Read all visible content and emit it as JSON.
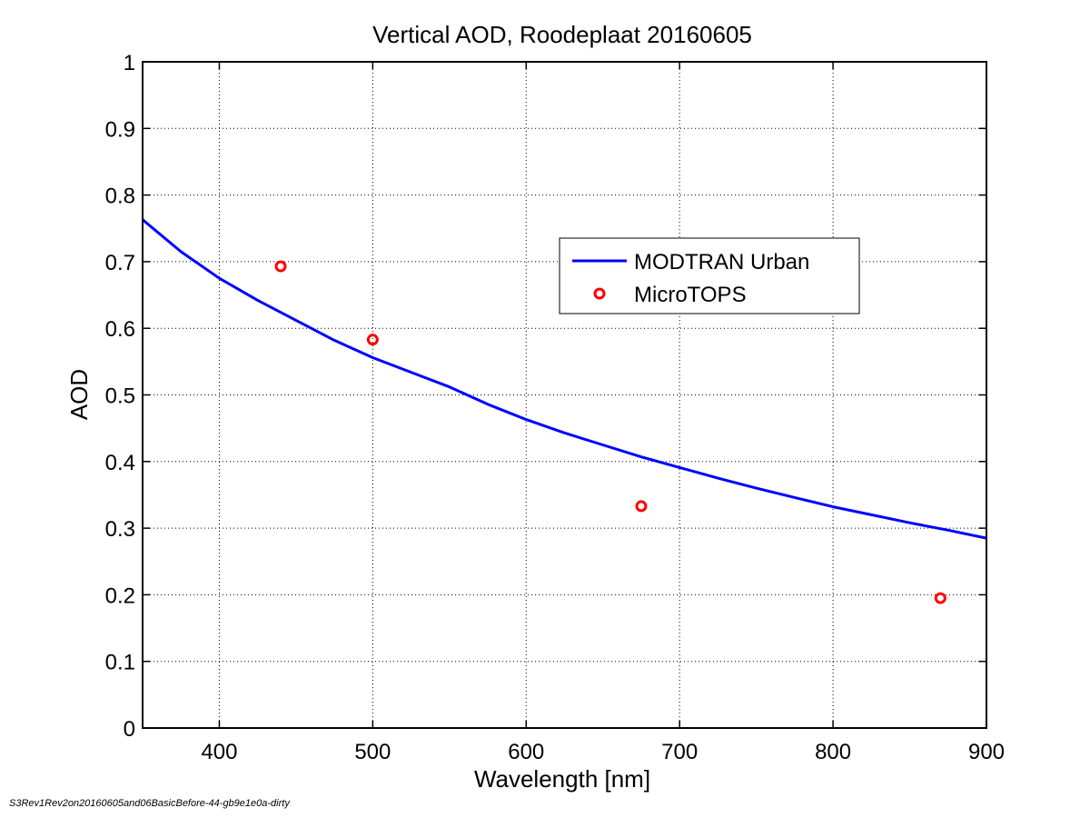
{
  "chart_data": {
    "type": "line",
    "title": "Vertical AOD, Roodeplaat 20160605",
    "xlabel": "Wavelength [nm]",
    "ylabel": "AOD",
    "xlim": [
      350,
      900
    ],
    "ylim": [
      0,
      1
    ],
    "xticks": [
      400,
      500,
      600,
      700,
      800,
      900
    ],
    "yticks": [
      0,
      0.1,
      0.2,
      0.3,
      0.4,
      0.5,
      0.6,
      0.7,
      0.8,
      0.9,
      1
    ],
    "xtick_labels": [
      "400",
      "500",
      "600",
      "700",
      "800",
      "900"
    ],
    "ytick_labels": [
      "0",
      "0.1",
      "0.2",
      "0.3",
      "0.4",
      "0.5",
      "0.6",
      "0.7",
      "0.8",
      "0.9",
      "1"
    ],
    "grid": true,
    "legend_position": "upper-right-center",
    "series": [
      {
        "name": "MODTRAN Urban",
        "type": "line",
        "color": "#0000ff",
        "x": [
          350,
          375,
          400,
          425,
          450,
          475,
          500,
          525,
          550,
          575,
          600,
          625,
          650,
          675,
          700,
          725,
          750,
          775,
          800,
          825,
          850,
          875,
          900
        ],
        "y": [
          0.763,
          0.715,
          0.675,
          0.642,
          0.612,
          0.582,
          0.556,
          0.534,
          0.512,
          0.486,
          0.463,
          0.443,
          0.425,
          0.407,
          0.391,
          0.375,
          0.36,
          0.346,
          0.332,
          0.32,
          0.308,
          0.297,
          0.285
        ]
      },
      {
        "name": "MicroTOPS",
        "type": "scatter",
        "marker": "circle-open",
        "color": "#ff0000",
        "x": [
          440,
          500,
          675,
          870
        ],
        "y": [
          0.693,
          0.583,
          0.333,
          0.195
        ]
      }
    ]
  },
  "footer": {
    "text": "S3Rev1Rev2on20160605and06BasicBefore-44-gb9e1e0a-dirty"
  },
  "colors": {
    "background": "#ffffff",
    "axes": "#000000",
    "line": "#0000ff",
    "marker": "#ff0000"
  }
}
